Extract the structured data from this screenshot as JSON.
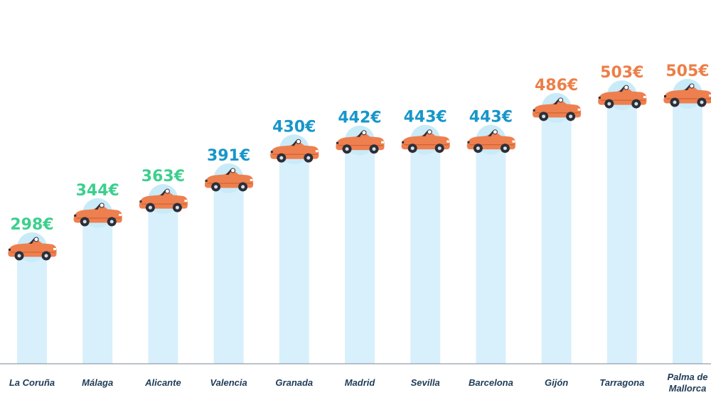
{
  "colors": {
    "bar": "#d8f0fb",
    "bubble": "#c9ebf8",
    "car_body": "#ee7f4f",
    "car_dark": "#2b2f3a",
    "axis": "#7b8794",
    "green": "#3ccf8e",
    "blue": "#1796c9",
    "orange": "#ec7f48",
    "category_text": "#1f3b57"
  },
  "icon": "car-icon",
  "chart_data": {
    "type": "bar",
    "categories": [
      "La Coruña",
      "Málaga",
      "Alicante",
      "Valencia",
      "Granada",
      "Madrid",
      "Sevilla",
      "Barcelona",
      "Gijón",
      "Tarragona",
      "Palma de Mallorca"
    ],
    "values": [
      298,
      344,
      363,
      391,
      430,
      442,
      443,
      443,
      486,
      503,
      505
    ],
    "value_labels": [
      "298€",
      "344€",
      "363€",
      "391€",
      "430€",
      "442€",
      "443€",
      "443€",
      "486€",
      "503€",
      "505€"
    ],
    "label_color_groups": [
      "green",
      "green",
      "green",
      "blue",
      "blue",
      "blue",
      "blue",
      "blue",
      "orange",
      "orange",
      "orange"
    ],
    "unit": "€",
    "ylim": [
      0,
      560
    ],
    "grid": false,
    "legend": "none",
    "title": "",
    "xlabel": "",
    "ylabel": ""
  }
}
